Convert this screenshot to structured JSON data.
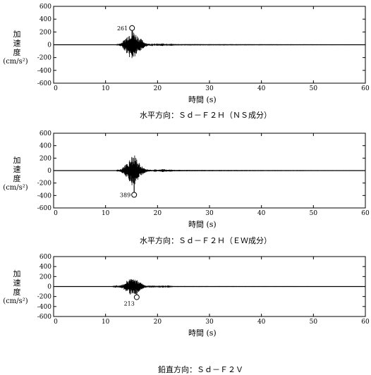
{
  "chart_data": [
    {
      "type": "line",
      "ylabel_chars": [
        "加",
        "速",
        "度"
      ],
      "ylabel_unit": "(cm/s²)",
      "xlabel": "時間 (s)",
      "caption": "水平方向：Ｓｄ－Ｆ２Ｈ（ＮＳ成分）",
      "xlim": [
        0,
        60
      ],
      "ylim": [
        -600,
        600
      ],
      "xticks": [
        0,
        10,
        20,
        30,
        40,
        50,
        60
      ],
      "yticks": [
        600,
        400,
        200,
        0,
        -200,
        -400,
        -600
      ],
      "grid": false,
      "peak": {
        "x": 15.1,
        "y": 261,
        "label": "261"
      },
      "envelope": {
        "t": [
          12,
          13,
          13.5,
          14,
          14.5,
          15,
          15.5,
          16,
          16.5,
          17,
          17.5,
          18,
          19,
          20,
          21,
          22,
          23,
          60
        ],
        "amp": [
          0,
          30,
          70,
          130,
          190,
          240,
          215,
          160,
          120,
          80,
          45,
          20,
          10,
          8,
          22,
          12,
          4,
          1
        ]
      }
    },
    {
      "type": "line",
      "ylabel_chars": [
        "加",
        "速",
        "度"
      ],
      "ylabel_unit": "(cm/s²)",
      "xlabel": "時間 (s)",
      "caption": "水平方向：Ｓｄ－Ｆ２Ｈ（ＥＷ成分）",
      "xlim": [
        0,
        60
      ],
      "ylim": [
        -600,
        600
      ],
      "xticks": [
        0,
        10,
        20,
        30,
        40,
        50,
        60
      ],
      "yticks": [
        600,
        400,
        200,
        0,
        -200,
        -400,
        -600
      ],
      "grid": false,
      "peak": {
        "x": 15.5,
        "y": -389,
        "label": "389"
      },
      "envelope": {
        "t": [
          12,
          13,
          13.5,
          14,
          14.5,
          15,
          15.5,
          16,
          16.5,
          17,
          17.5,
          18,
          19,
          20,
          21,
          22,
          23,
          60
        ],
        "amp": [
          0,
          25,
          60,
          110,
          170,
          230,
          260,
          190,
          120,
          70,
          40,
          20,
          10,
          10,
          25,
          12,
          4,
          1
        ]
      }
    },
    {
      "type": "line",
      "ylabel_chars": [
        "加",
        "速",
        "度"
      ],
      "ylabel_unit": "(cm/s²)",
      "xlabel": "時間 (s)",
      "caption": "鉛直方向：Ｓｄ－Ｆ２Ｖ",
      "xlim": [
        0,
        60
      ],
      "ylim": [
        -600,
        600
      ],
      "xticks": [
        0,
        10,
        20,
        30,
        40,
        50,
        60
      ],
      "yticks": [
        600,
        400,
        200,
        0,
        -200,
        -400,
        -600
      ],
      "grid": false,
      "peak": {
        "x": 16.0,
        "y": -213,
        "label": "213"
      },
      "envelope": {
        "t": [
          11,
          12,
          13,
          13.5,
          14,
          14.5,
          15,
          15.5,
          16,
          16.5,
          17,
          17.5,
          18,
          19,
          20,
          21,
          22,
          23,
          60
        ],
        "amp": [
          0,
          10,
          30,
          60,
          110,
          150,
          180,
          160,
          140,
          100,
          60,
          30,
          15,
          8,
          6,
          20,
          10,
          3,
          1
        ]
      }
    }
  ]
}
